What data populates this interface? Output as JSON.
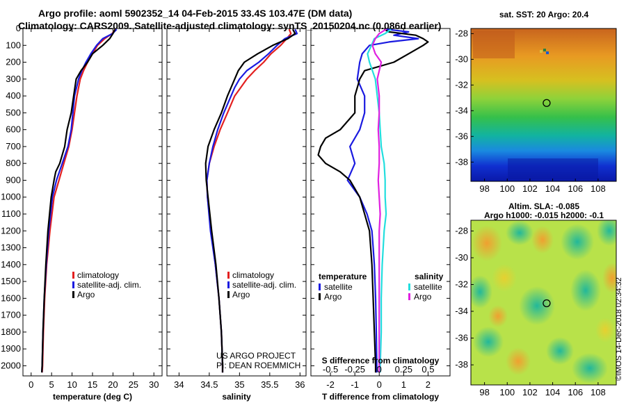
{
  "header": {
    "title_line1": "Argo profile: aoml 5902352_14 04-Feb-2015 33.4S 103.47E (DM data)",
    "title_line2": "Climatology: CARS2009. Satellite-adjusted climatology: synTS_20150204.nc (0.086d earlier)"
  },
  "credits": {
    "project": "US ARGO PROJECT",
    "pi": "PI: DEAN ROEMMICH",
    "imos": "©IMOS 14-Dec-2018 02:34:32"
  },
  "colors": {
    "climatology": "#e32020",
    "satellite": "#1a1ae0",
    "argo": "#000000",
    "s_satellite": "#22dede",
    "s_argo": "#e020e0"
  },
  "chart_data": [
    {
      "type": "line",
      "name": "temperature-profile",
      "xlabel": "temperature (deg C)",
      "ylabel": "",
      "xlim": [
        -2,
        32
      ],
      "ylim": [
        2060,
        0
      ],
      "xticks": [
        0,
        5,
        10,
        15,
        20,
        25,
        30
      ],
      "yticks": [
        0,
        100,
        200,
        300,
        400,
        500,
        600,
        700,
        800,
        900,
        1000,
        1100,
        1200,
        1300,
        1400,
        1500,
        1600,
        1700,
        1800,
        1900,
        2000
      ],
      "legend": [
        "climatology",
        "satellite-adj. clim.",
        "Argo"
      ],
      "legend_position": "bottom-center",
      "series": [
        {
          "name": "climatology",
          "color_key": "climatology",
          "depth": [
            5,
            30,
            60,
            100,
            150,
            200,
            250,
            300,
            400,
            500,
            600,
            700,
            800,
            900,
            1000,
            1200,
            1400,
            1600,
            1800,
            2000,
            2040
          ],
          "values": [
            20.6,
            19.8,
            18.0,
            16.2,
            15.0,
            13.8,
            12.8,
            12.0,
            11.2,
            10.6,
            10.0,
            9.2,
            8.0,
            6.8,
            5.6,
            4.6,
            3.8,
            3.3,
            3.0,
            2.8,
            2.7
          ]
        },
        {
          "name": "satellite-adj. clim.",
          "color_key": "satellite",
          "depth": [
            5,
            30,
            60,
            100,
            150,
            200,
            250,
            300,
            400,
            500,
            600,
            700,
            800,
            900,
            1000,
            1200,
            1400,
            1600,
            1800,
            2000,
            2040
          ],
          "values": [
            20.9,
            19.9,
            17.5,
            16.0,
            14.6,
            13.4,
            12.4,
            11.6,
            10.6,
            10.2,
            9.8,
            9.0,
            7.6,
            6.2,
            5.2,
            4.3,
            3.7,
            3.2,
            2.9,
            2.7,
            2.6
          ]
        },
        {
          "name": "Argo",
          "color_key": "argo",
          "depth": [
            5,
            30,
            60,
            100,
            150,
            200,
            250,
            300,
            400,
            500,
            600,
            700,
            800,
            850,
            900,
            1000,
            1200,
            1400,
            1600,
            1800,
            2000,
            2040
          ],
          "values": [
            20.5,
            20.0,
            19.2,
            17.5,
            15.0,
            13.8,
            12.2,
            11.0,
            10.4,
            9.8,
            8.8,
            8.2,
            7.0,
            6.0,
            5.6,
            4.9,
            4.1,
            3.6,
            3.2,
            2.9,
            2.7,
            2.6
          ]
        }
      ]
    },
    {
      "type": "line",
      "name": "salinity-profile",
      "xlabel": "salinity",
      "xlim": [
        33.8,
        36.1
      ],
      "ylim": [
        2060,
        0
      ],
      "xticks": [
        34,
        34.5,
        35,
        35.5,
        36
      ],
      "xticklabels": [
        "34",
        "34.5",
        "35",
        "35.5",
        "36"
      ],
      "legend": [
        "climatology",
        "satellite-adj. clim.",
        "Argo"
      ],
      "legend_position": "bottom-center",
      "series": [
        {
          "name": "climatology",
          "color_key": "climatology",
          "depth": [
            5,
            30,
            60,
            100,
            150,
            200,
            250,
            300,
            350,
            400,
            500,
            600,
            700,
            800,
            900,
            1000,
            1200,
            1400,
            1600,
            1800,
            2000,
            2040
          ],
          "values": [
            35.82,
            35.85,
            35.78,
            35.68,
            35.52,
            35.4,
            35.25,
            35.12,
            35.02,
            34.92,
            34.8,
            34.68,
            34.58,
            34.5,
            34.46,
            34.47,
            34.53,
            34.6,
            34.66,
            34.7,
            34.72,
            34.72
          ]
        },
        {
          "name": "satellite-adj. clim.",
          "color_key": "satellite",
          "depth": [
            5,
            30,
            60,
            100,
            150,
            200,
            250,
            300,
            350,
            400,
            500,
            600,
            700,
            800,
            900,
            1000,
            1200,
            1400,
            1600,
            1800,
            2000,
            2040
          ],
          "values": [
            35.92,
            35.95,
            35.75,
            35.62,
            35.48,
            35.32,
            35.12,
            35.0,
            34.92,
            34.86,
            34.74,
            34.64,
            34.56,
            34.5,
            34.46,
            34.47,
            34.52,
            34.6,
            34.66,
            34.7,
            34.72,
            34.72
          ]
        },
        {
          "name": "Argo",
          "color_key": "argo",
          "depth": [
            5,
            30,
            60,
            100,
            150,
            200,
            250,
            300,
            350,
            400,
            500,
            600,
            700,
            800,
            900,
            1000,
            1200,
            1400,
            1600,
            1800,
            2000,
            2040
          ],
          "values": [
            35.88,
            35.92,
            35.8,
            35.55,
            35.3,
            35.08,
            34.98,
            34.92,
            34.86,
            34.8,
            34.7,
            34.58,
            34.48,
            34.44,
            34.45,
            34.48,
            34.54,
            34.61,
            34.66,
            34.7,
            34.72,
            34.72
          ]
        }
      ]
    },
    {
      "type": "line",
      "name": "difference-profile",
      "xlabel": "T difference from climatology",
      "xlabel_top": "S difference from climatology",
      "xlim": [
        -2.8,
        2.9
      ],
      "ylim": [
        2060,
        0
      ],
      "xticks": [
        -2,
        -1,
        0,
        1,
        2
      ],
      "xticks_s": [
        -0.5,
        -0.25,
        0,
        0.25,
        0.5
      ],
      "xticklabels_s": [
        "-0.5",
        "-0.25",
        "0",
        "0.25",
        "0.5"
      ],
      "s_scale": 4,
      "legend_t_title": "temperature",
      "legend_s_title": "salinity",
      "legend_t": [
        "satellite",
        "Argo"
      ],
      "legend_s": [
        "satellite",
        "Argo"
      ],
      "series": [
        {
          "name": "T satellite",
          "color_key": "satellite",
          "depth": [
            5,
            20,
            40,
            60,
            80,
            100,
            150,
            200,
            300,
            400,
            500,
            600,
            700,
            800,
            900,
            1000,
            1100,
            1200,
            1300,
            1400,
            1600,
            1800,
            2000,
            2040
          ],
          "values": [
            0.3,
            1.2,
            0.6,
            1.6,
            0.4,
            -0.4,
            -0.7,
            -0.8,
            -0.9,
            -0.6,
            -0.6,
            -0.8,
            -1.2,
            -1.0,
            -1.3,
            -0.8,
            -0.5,
            -0.3,
            -0.25,
            -0.2,
            -0.15,
            -0.12,
            -0.1,
            -0.1
          ]
        },
        {
          "name": "T Argo",
          "color_key": "argo",
          "depth": [
            5,
            20,
            40,
            60,
            80,
            100,
            150,
            200,
            250,
            300,
            350,
            400,
            500,
            600,
            650,
            700,
            750,
            800,
            850,
            900,
            950,
            1000,
            1100,
            1200,
            1400,
            1600,
            1800,
            2000,
            2040
          ],
          "values": [
            0.2,
            0.4,
            1.5,
            1.8,
            2.0,
            1.8,
            1.2,
            0.6,
            -0.6,
            -0.8,
            -0.9,
            -1.0,
            -1.0,
            -1.6,
            -2.2,
            -2.4,
            -2.5,
            -2.2,
            -1.6,
            -1.2,
            -1.0,
            -0.8,
            -0.6,
            -0.4,
            -0.3,
            -0.25,
            -0.2,
            -0.15,
            -0.15
          ]
        },
        {
          "name": "S satellite",
          "color_key": "s_satellite",
          "depth": [
            5,
            30,
            60,
            100,
            150,
            200,
            300,
            400,
            500,
            600,
            700,
            800,
            900,
            1000,
            1100,
            1200,
            1400,
            1600,
            1800,
            2000,
            2040
          ],
          "values": [
            0.12,
            0.06,
            -0.05,
            -0.08,
            -0.12,
            -0.1,
            -0.04,
            -0.02,
            0.0,
            0.01,
            0.02,
            0.05,
            0.06,
            0.06,
            0.07,
            0.05,
            0.03,
            0.02,
            0.02,
            0.01,
            0.01
          ]
        },
        {
          "name": "S Argo",
          "color_key": "s_argo",
          "depth": [
            5,
            30,
            60,
            100,
            150,
            200,
            300,
            400,
            500,
            600,
            700,
            800,
            900,
            1000,
            1100,
            1200,
            1400,
            1600,
            1800,
            2000,
            2040
          ],
          "values": [
            0.07,
            0.0,
            -0.04,
            -0.07,
            -0.04,
            0.02,
            -0.02,
            0.0,
            0.0,
            -0.01,
            0.0,
            0.0,
            -0.01,
            0.0,
            0.01,
            0.0,
            0.0,
            0.0,
            0.0,
            0.0,
            0.0
          ]
        }
      ]
    },
    {
      "type": "heatmap",
      "name": "sst-map",
      "title": "sat. SST: 20 Argo: 20.4",
      "xlim": [
        96.8,
        109.6
      ],
      "ylim": [
        -39.5,
        -27.6
      ],
      "xticks": [
        98,
        100,
        102,
        104,
        106,
        108
      ],
      "yticks": [
        -28,
        -30,
        -32,
        -34,
        -36,
        -38
      ],
      "marker": {
        "lon": 103.47,
        "lat": -33.4
      }
    },
    {
      "type": "heatmap",
      "name": "sla-map",
      "title": "Altim. SLA: -0.085",
      "subtitle": "Argo h1000: -0.015 h2000: -0.1",
      "xlim": [
        96.8,
        109.6
      ],
      "ylim": [
        -39.5,
        -27.2
      ],
      "xticks": [
        98,
        100,
        102,
        104,
        106,
        108
      ],
      "yticks": [
        -28,
        -30,
        -32,
        -34,
        -36,
        -38
      ],
      "marker": {
        "lon": 103.47,
        "lat": -33.4
      }
    }
  ]
}
